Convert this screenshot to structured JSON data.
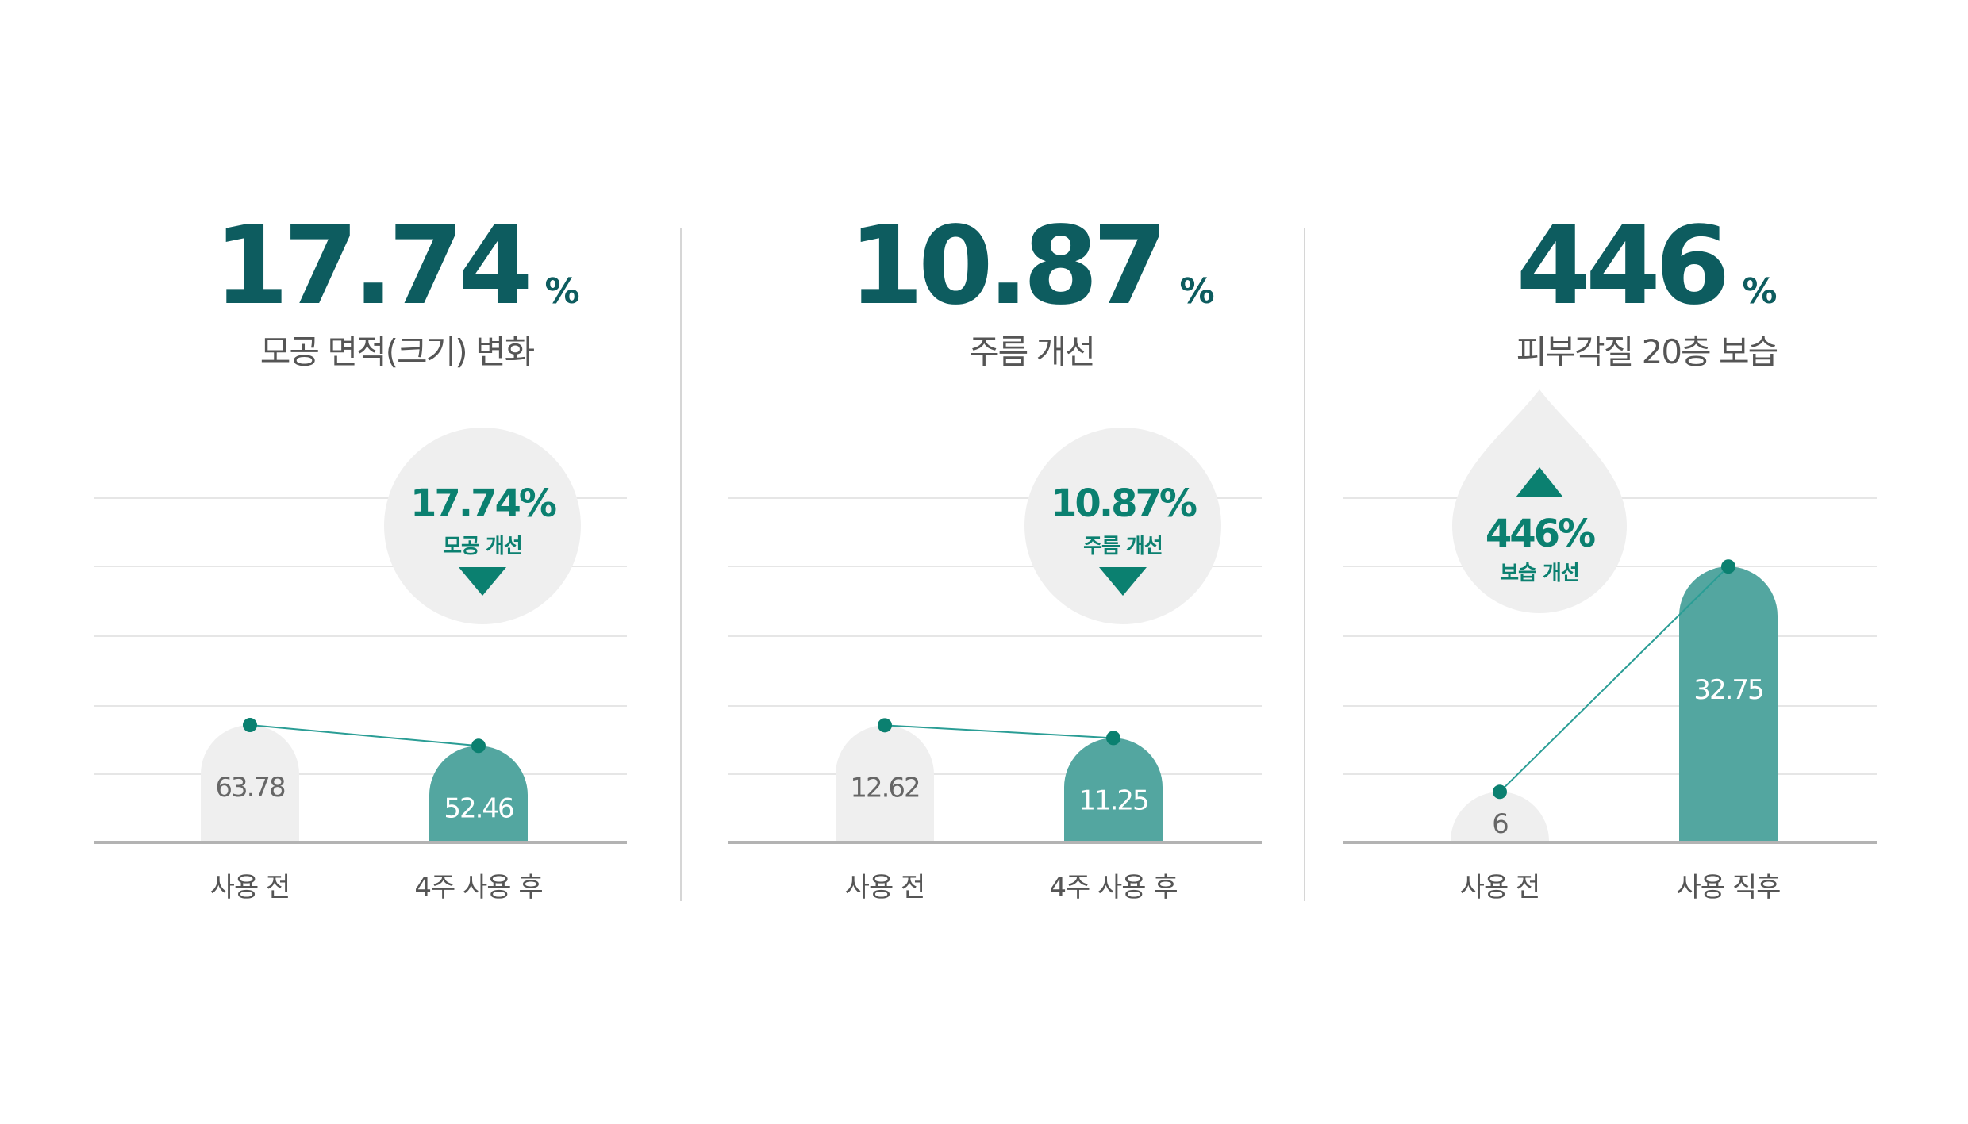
{
  "theme": {
    "headline_color": "#0d5c5f",
    "accent_color": "#0b8070",
    "bar_after_color": "#53a6a0",
    "bar_before_color": "#efefef",
    "bubble_color": "#efefef",
    "axis_color": "#b3b3b3",
    "grid_color": "#e6e6e6",
    "label_color": "#555555"
  },
  "panels": [
    {
      "headline_value": "17.74",
      "headline_unit": "%",
      "subtitle": "모공 면적(크기) 변화",
      "badge": {
        "shape": "circle",
        "arrow": "down",
        "value": "17.74%",
        "label": "모공 개선"
      }
    },
    {
      "headline_value": "10.87",
      "headline_unit": "%",
      "subtitle": "주름 개선",
      "badge": {
        "shape": "circle",
        "arrow": "down",
        "value": "10.87%",
        "label": "주름 개선"
      }
    },
    {
      "headline_value": "446",
      "headline_unit": "%",
      "subtitle": "피부각질 20층 보습",
      "badge": {
        "shape": "droplet",
        "arrow": "up",
        "value": "446%",
        "label": "보습 개선"
      }
    }
  ],
  "chart_data": [
    {
      "type": "bar",
      "title": "모공 면적(크기) 변화",
      "categories": [
        "사용 전",
        "4주 사용 후"
      ],
      "values": [
        63.78,
        52.46
      ],
      "value_labels": [
        "63.78",
        "52.46"
      ],
      "change": "17.74%",
      "trend_line": true,
      "grid": true
    },
    {
      "type": "bar",
      "title": "주름 개선",
      "categories": [
        "사용 전",
        "4주 사용 후"
      ],
      "values": [
        12.62,
        11.25
      ],
      "value_labels": [
        "12.62",
        "11.25"
      ],
      "change": "10.87%",
      "trend_line": true,
      "grid": true
    },
    {
      "type": "bar",
      "title": "피부각질 20층 보습",
      "categories": [
        "사용 전",
        "사용 직후"
      ],
      "values": [
        6,
        32.75
      ],
      "value_labels": [
        "6",
        "32.75"
      ],
      "change": "446%",
      "trend_line": true,
      "grid": true
    }
  ]
}
